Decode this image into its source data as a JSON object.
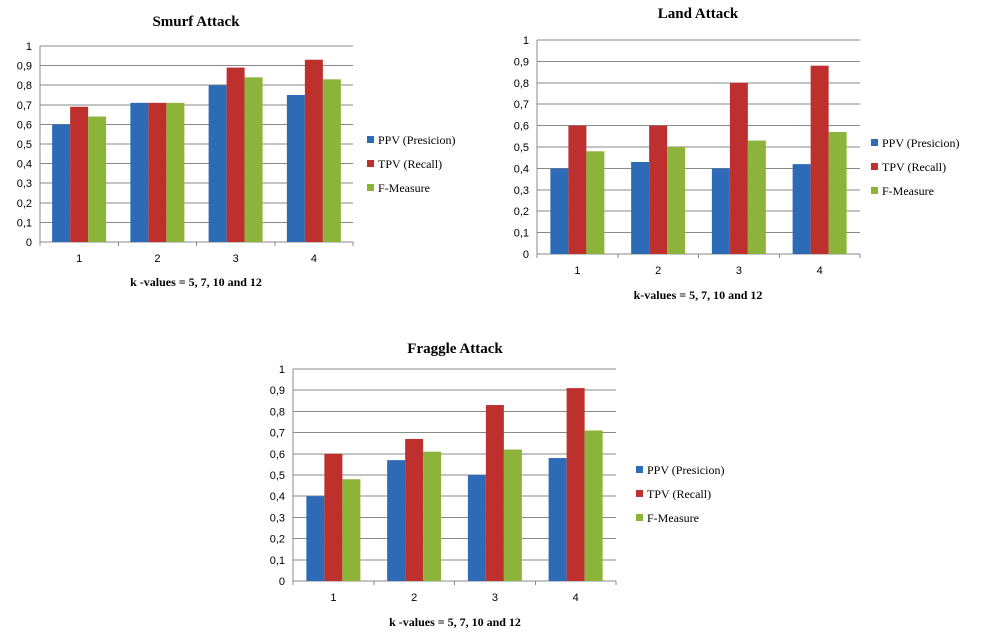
{
  "chart_data": [
    {
      "type": "bar",
      "title": "Smurf Attack",
      "xlabel": "k -values = 5, 7, 10  and  12",
      "ylabel": "",
      "categories": [
        "1",
        "2",
        "3",
        "4"
      ],
      "ylim": [
        0,
        1
      ],
      "yticks": [
        "0",
        "0,1",
        "0,2",
        "0,3",
        "0,4",
        "0,5",
        "0,6",
        "0,7",
        "0,8",
        "0,9",
        "1"
      ],
      "grid": true,
      "legend": "right",
      "series": [
        {
          "name": "PPV (Presicion)",
          "color": "#2E6BB7",
          "values": [
            0.6,
            0.71,
            0.8,
            0.75
          ]
        },
        {
          "name": "TPV (Recall)",
          "color": "#BE302E",
          "values": [
            0.69,
            0.71,
            0.89,
            0.93
          ]
        },
        {
          "name": "F-Measure",
          "color": "#8DB43A",
          "values": [
            0.64,
            0.71,
            0.84,
            0.83
          ]
        }
      ]
    },
    {
      "type": "bar",
      "title": "Land Attack",
      "xlabel": "k-values = 5, 7, 10  and  12",
      "ylabel": "",
      "categories": [
        "1",
        "2",
        "3",
        "4"
      ],
      "ylim": [
        0,
        1
      ],
      "yticks": [
        "0",
        "0,1",
        "0,2",
        "0,3",
        "0,4",
        "0,5",
        "0,6",
        "0,7",
        "0,8",
        "0,9",
        "1"
      ],
      "grid": true,
      "legend": "right",
      "series": [
        {
          "name": "PPV (Presicion)",
          "color": "#2E6BB7",
          "values": [
            0.4,
            0.43,
            0.4,
            0.42
          ]
        },
        {
          "name": "TPV (Recall)",
          "color": "#BE302E",
          "values": [
            0.6,
            0.6,
            0.8,
            0.88
          ]
        },
        {
          "name": "F-Measure",
          "color": "#8DB43A",
          "values": [
            0.48,
            0.5,
            0.53,
            0.57
          ]
        }
      ]
    },
    {
      "type": "bar",
      "title": "Fraggle Attack",
      "xlabel": "k -values = 5, 7, 10  and  12",
      "ylabel": "",
      "categories": [
        "1",
        "2",
        "3",
        "4"
      ],
      "ylim": [
        0,
        1
      ],
      "yticks": [
        "0",
        "0,1",
        "0,2",
        "0,3",
        "0,4",
        "0,5",
        "0,6",
        "0,7",
        "0,8",
        "0,9",
        "1"
      ],
      "grid": true,
      "legend": "right",
      "series": [
        {
          "name": "PPV (Presicion)",
          "color": "#2E6BB7",
          "values": [
            0.4,
            0.57,
            0.5,
            0.58
          ]
        },
        {
          "name": "TPV (Recall)",
          "color": "#BE302E",
          "values": [
            0.6,
            0.67,
            0.83,
            0.91
          ]
        },
        {
          "name": "F-Measure",
          "color": "#8DB43A",
          "values": [
            0.48,
            0.61,
            0.62,
            0.71
          ]
        }
      ]
    }
  ]
}
